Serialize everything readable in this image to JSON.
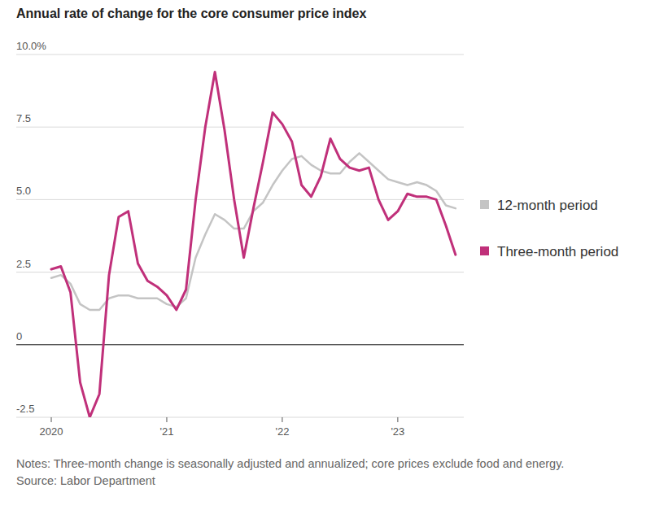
{
  "chart_data": {
    "type": "line",
    "title": "Annual rate of change for the core consumer price index",
    "notes": "Notes: Three-month change is seasonally adjusted and annualized; core prices exclude food and energy.",
    "source": "Source: Labor Department",
    "categories": [
      "2020",
      null,
      null,
      null,
      null,
      null,
      null,
      null,
      null,
      null,
      null,
      null,
      "'21",
      null,
      null,
      null,
      null,
      null,
      null,
      null,
      null,
      null,
      null,
      null,
      "'22",
      null,
      null,
      null,
      null,
      null,
      null,
      null,
      null,
      null,
      null,
      null,
      "'23",
      null,
      null,
      null,
      null,
      null,
      null
    ],
    "series": [
      {
        "name": "12-month period",
        "color": "#c4c4c4",
        "values": [
          2.3,
          2.4,
          2.1,
          1.4,
          1.2,
          1.2,
          1.6,
          1.7,
          1.7,
          1.6,
          1.6,
          1.6,
          1.4,
          1.3,
          1.6,
          3.0,
          3.8,
          4.5,
          4.3,
          4.0,
          4.0,
          4.6,
          4.9,
          5.5,
          6.0,
          6.4,
          6.5,
          6.2,
          6.0,
          5.9,
          5.9,
          6.3,
          6.6,
          6.3,
          6.0,
          5.7,
          5.6,
          5.5,
          5.6,
          5.5,
          5.3,
          4.8,
          4.7
        ]
      },
      {
        "name": "Three-month period",
        "color": "#c0307a",
        "values": [
          2.6,
          2.7,
          1.8,
          -1.3,
          -2.5,
          -1.7,
          2.4,
          4.4,
          4.6,
          2.8,
          2.2,
          2.0,
          1.7,
          1.2,
          1.9,
          5.0,
          7.5,
          9.4,
          7.4,
          5.0,
          3.0,
          4.7,
          6.3,
          8.0,
          7.6,
          7.0,
          5.5,
          5.1,
          5.8,
          7.1,
          6.4,
          6.1,
          6.0,
          6.1,
          5.0,
          4.3,
          4.6,
          5.2,
          5.1,
          5.1,
          5.0,
          4.1,
          3.1
        ]
      }
    ],
    "ylim": [
      -2.5,
      10
    ],
    "yticks": [
      -2.5,
      0,
      2.5,
      {
        "value": 5,
        "label": "5.0"
      },
      7.5,
      {
        "value": 10,
        "label": "10.0%"
      }
    ],
    "grid": true,
    "legend": "right"
  }
}
